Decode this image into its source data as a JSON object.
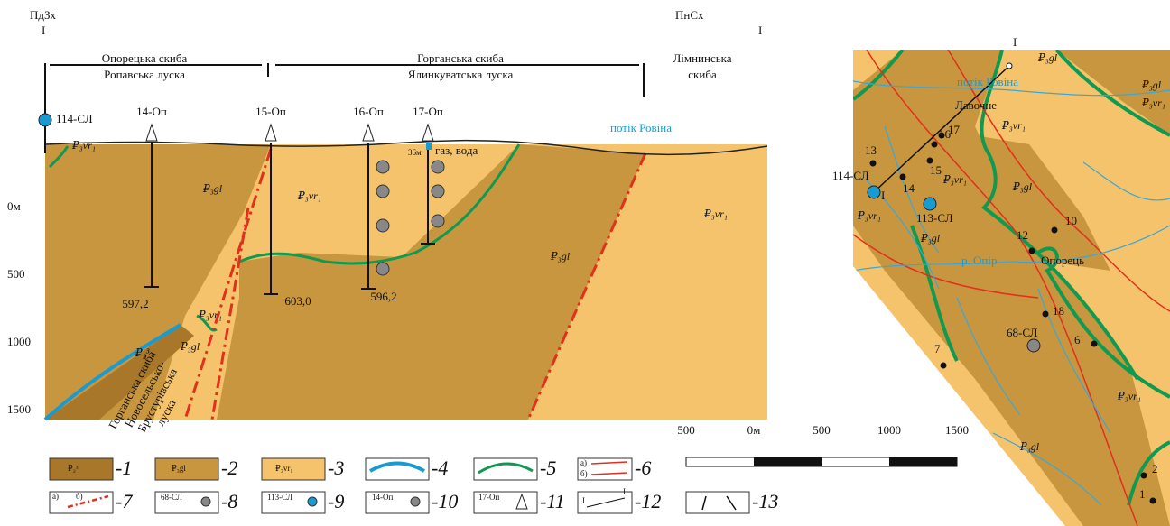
{
  "section": {
    "orientation": [
      "ПдЗх",
      "I",
      "ПнСх",
      "I"
    ],
    "blocks": [
      "Опорецька скиба",
      "Ропавська луска",
      "Горганська скиба",
      "Ялинкуватська луска",
      "Лімнинська",
      "скиба"
    ],
    "wells": [
      "114-СЛ",
      "14-Оп",
      "15-Оп",
      "16-Оп",
      "17-Оп"
    ],
    "stream": "потік Ровіна",
    "well_note": [
      "36м",
      "газ, вода"
    ],
    "depths": [
      "597,2",
      "603,0",
      "596,2"
    ],
    "depth_axis": [
      "0м",
      "500",
      "1000",
      "1500"
    ],
    "formation_labels": [
      "₽₃vr₁",
      "₽₃gl",
      "₽₃vr₁",
      "₽₃gl",
      "₽₃vr₁",
      "₽₃vr₁",
      "₽₂³",
      "₽₃gl"
    ],
    "rotated_label": [
      "Горганська скиба",
      "Новосельсько-",
      "Брустурівська",
      "луска"
    ]
  },
  "scale": [
    "500",
    "0м",
    "500",
    "1000",
    "1500"
  ],
  "legend": {
    "numbers": [
      "-1",
      "-2",
      "-3",
      "-4",
      "-5",
      "-6",
      "-7",
      "-8",
      "-9",
      "-10",
      "-11",
      "-12",
      "-13"
    ],
    "swatch_labels": [
      "₽₂³",
      "₽₃gl",
      "₽₃vr₁",
      "а)",
      "б)",
      "а)",
      "б)",
      "68-СЛ",
      "113-СЛ",
      "14-Оп",
      "17-Оп",
      "I",
      "I"
    ]
  },
  "map": {
    "labels": [
      "I",
      "потік Ровіна",
      "₽₃gl",
      "₽₃gl",
      "₽₃vr₁",
      "₽₃vr₁",
      "Лавочне",
      "16",
      "17",
      "15",
      "14",
      "13",
      "114-СЛ",
      "I",
      "₽₃vr₁",
      "₽₃gl",
      "₽₃vr₁",
      "₽₃gl",
      "113-СЛ",
      "10",
      "12",
      "Опорець",
      "р. Опір",
      "18",
      "68-СЛ",
      "6",
      "7",
      "₽₃vr₁",
      "₽₃gl",
      "2",
      "1"
    ]
  }
}
